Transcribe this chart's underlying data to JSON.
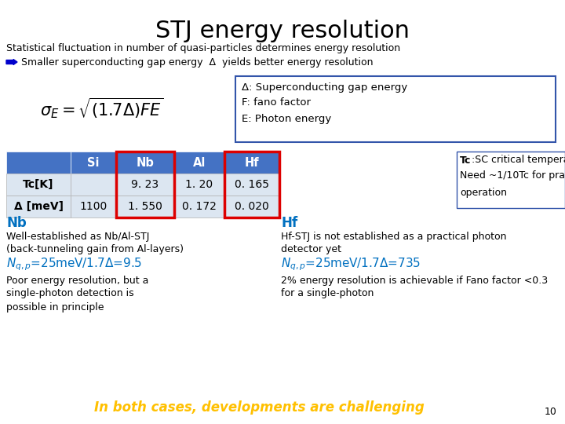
{
  "title": "STJ energy resolution",
  "title_fontsize": 22,
  "background_color": "#ffffff",
  "line1": "Statistical fluctuation in number of quasi-particles determines energy resolution",
  "line2_text": "Smaller superconducting gap energy  Δ  yields better energy resolution",
  "table_headers": [
    "",
    "Si",
    "Nb",
    "Al",
    "Hf"
  ],
  "table_row1_label": "Tc[K]",
  "table_row2_label": "Δ [meV]",
  "table_row1": [
    "",
    "9. 23",
    "1. 20",
    "0. 165"
  ],
  "table_row2": [
    "1100",
    "1. 550",
    "0. 172",
    "0. 020"
  ],
  "header_bg": "#4472c4",
  "header_fg": "#ffffff",
  "cell_bg_light": "#dce6f1",
  "nb_section_title": "Nb",
  "nb_line1": "Well-established as Nb/Al-STJ",
  "nb_line2": "(back-tunneling gain from Al-layers)",
  "nb_text1": "Poor energy resolution, but a",
  "nb_text2": "single-photon detection is",
  "nb_text3": "possible in principle",
  "hf_section_title": "Hf",
  "hf_line1": "Hf-STJ is not established as a practical photon",
  "hf_line2": "detector yet",
  "hf_text1": "2% energy resolution is achievable if Fano factor <0.3",
  "hf_text2": "for a single-photon",
  "bottom_text": "In both cases, developments are challenging",
  "bottom_color": "#ffc000",
  "page_num": "10",
  "blue_text_color": "#0070c0",
  "arrow_color": "#0000cc"
}
